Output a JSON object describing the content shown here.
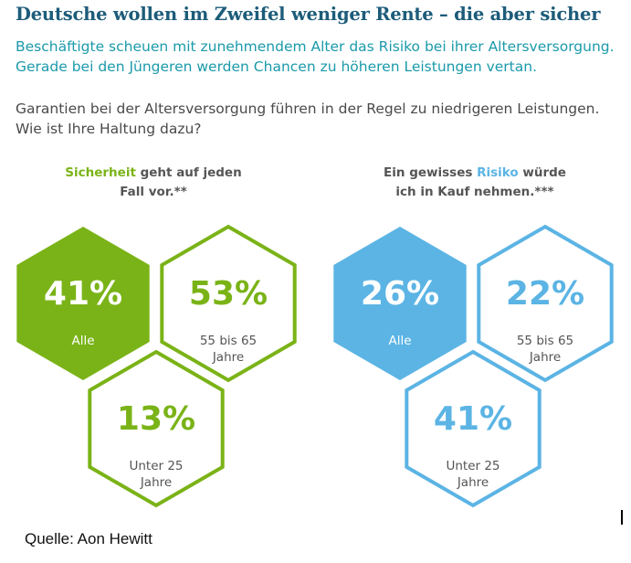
{
  "title": "Deutsche wollen im Zweifel weniger Rente – die aber sicher",
  "subtitle": {
    "line1": "Beschäftigte scheuen mit zunehmendem Alter das Risiko bei ihrer Altersversorgung.",
    "line2": "Gerade bei den Jüngeren werden Chancen zu höheren Leistungen vertan."
  },
  "question": {
    "line1": "Garantien bei der Altersversorgung führen in der Regel zu niedrigeren Leistungen.",
    "line2": "Wie ist Ihre Haltung dazu?"
  },
  "groups": {
    "security": {
      "highlight": "Sicherheit",
      "rest_line1": " geht auf jeden",
      "line2": "Fall vor.**"
    },
    "risk": {
      "line1_pre": "Ein gewisses ",
      "highlight": "Risiko",
      "line1_post": " würde",
      "line2": "ich in Kauf nehmen.***"
    }
  },
  "colors": {
    "green": "#7ab317",
    "blue": "#5bb4e4",
    "label": "#555555",
    "title": "#1d5c7a",
    "subtitle": "#1b9aaa"
  },
  "chart_data": {
    "type": "table",
    "series": [
      {
        "name": "Sicherheit geht auf jeden Fall vor.**",
        "color": "#7ab317",
        "items": [
          {
            "value": 41,
            "display": "41%",
            "label_lines": [
              "Alle"
            ],
            "filled": true
          },
          {
            "value": 53,
            "display": "53%",
            "label_lines": [
              "55 bis 65",
              "Jahre"
            ],
            "filled": false
          },
          {
            "value": 13,
            "display": "13%",
            "label_lines": [
              "Unter 25",
              "Jahre"
            ],
            "filled": false
          }
        ]
      },
      {
        "name": "Ein gewisses Risiko würde ich in Kauf nehmen.***",
        "color": "#5bb4e4",
        "items": [
          {
            "value": 26,
            "display": "26%",
            "label_lines": [
              "Alle"
            ],
            "filled": true
          },
          {
            "value": 22,
            "display": "22%",
            "label_lines": [
              "55 bis 65",
              "Jahre"
            ],
            "filled": false
          },
          {
            "value": 41,
            "display": "41%",
            "label_lines": [
              "Unter 25",
              "Jahre"
            ],
            "filled": false
          }
        ]
      }
    ]
  },
  "source": "Quelle: Aon Hewitt"
}
